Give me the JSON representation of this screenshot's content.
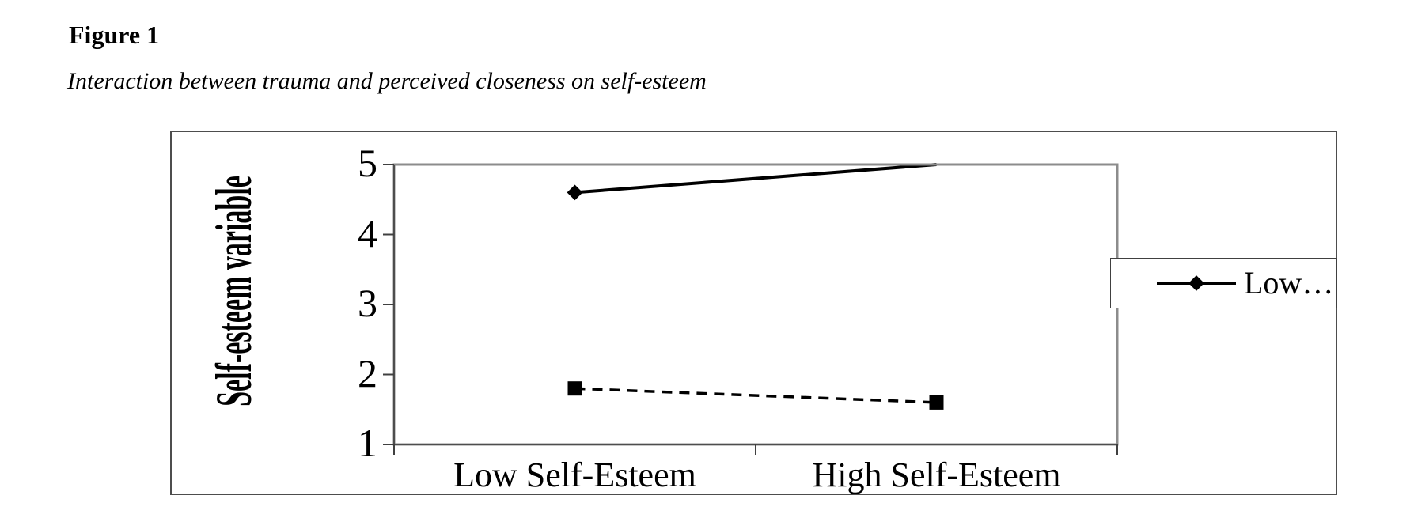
{
  "document": {
    "title": "Figure 1",
    "caption": "Interaction between trauma and perceived closeness on self-esteem"
  },
  "chart_data": {
    "type": "line",
    "categories": [
      "Low Self-Esteem",
      "High Self-Esteem"
    ],
    "series": [
      {
        "name": "Low…",
        "values": [
          4.6,
          5.0
        ],
        "line_style": "solid",
        "marker": "diamond",
        "color": "#000000"
      },
      {
        "name": "",
        "values": [
          1.8,
          1.6
        ],
        "line_style": "dashed",
        "marker": "square",
        "color": "#000000"
      }
    ],
    "ylabel": "Self-esteem variable",
    "xlabel": "",
    "ylim": [
      1,
      5
    ],
    "yticks": [
      "5",
      "4",
      "3",
      "2",
      "1"
    ],
    "grid": false,
    "legend": {
      "position": "right",
      "visible_entries": [
        "Low…"
      ],
      "truncated": true
    },
    "colors": {
      "plot_border": "#8c8c8c",
      "axis_line": "#4d4d4d",
      "figure_border": "#4d4d4d",
      "series": "#000000"
    }
  }
}
